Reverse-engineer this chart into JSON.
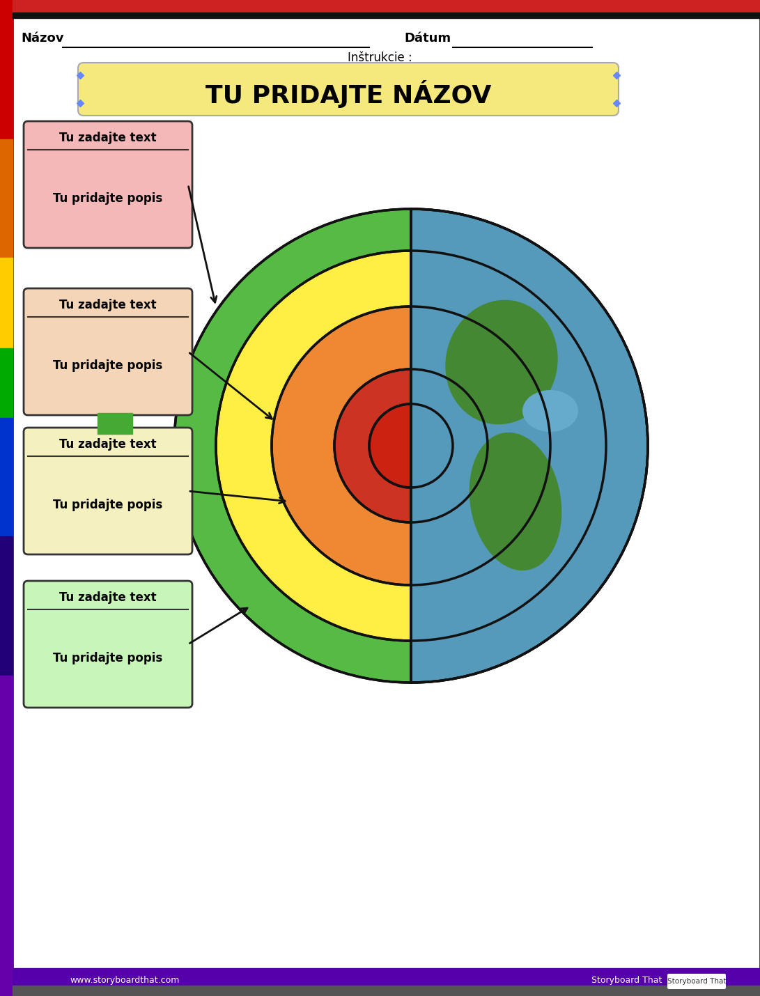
{
  "title": "TU PRIDAJTE NÁZOV",
  "naziv_label": "Názov",
  "datum_label": "Dátum",
  "instrukcie_label": "Inštrukcie :",
  "label_header": "Tu zadajte text",
  "label_body": "Tu pridajte popis",
  "bg_color": "#ffffff",
  "border_colors": [
    "#cc0000",
    "#ee6600",
    "#ffcc00",
    "#33aa00",
    "#0044cc",
    "#220088",
    "#660099"
  ],
  "rainbow_colors": [
    "#cc0000",
    "#dd6600",
    "#ffcc00",
    "#00aa00",
    "#0033cc",
    "#220077",
    "#6600aa"
  ],
  "title_bg": "#f5e87c",
  "title_border": "#aaaaaa",
  "box_colors": [
    "#f5b8b8",
    "#f5d5b8",
    "#f5f0b8",
    "#c8f5b8"
  ],
  "box_border": "#333333",
  "earth_crust_color": "#55aa44",
  "earth_mantle_color": "#88cc77",
  "earth_ocean_color": "#5599bb",
  "earth_land_color": "#448833",
  "layer_colors": [
    "#55aa44",
    "#ffee44",
    "#ee8833",
    "#cc3333"
  ],
  "layer_borders": [
    "#222222",
    "#222222",
    "#222222",
    "#222222"
  ],
  "arrow_color": "#111111",
  "line_color": "#111111",
  "footer_bg": "#555555",
  "footer_purple": "#5500aa",
  "storyboard_text": "Storyboard That",
  "website_text": "www.storyboardthat.com"
}
